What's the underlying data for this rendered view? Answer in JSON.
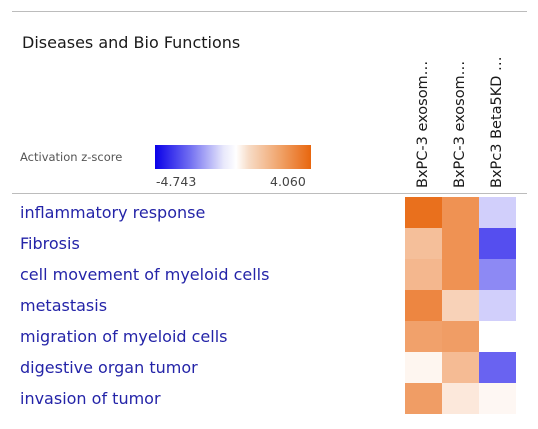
{
  "title": "Diseases and Bio Functions",
  "legend": {
    "label": "Activation z-score",
    "min": "-4.743",
    "max": "4.060"
  },
  "colors": {
    "negative": "#0a00e8",
    "positive": "#e8660e",
    "neutral": "#ffffff",
    "row_label": "#2424a8"
  },
  "chart_data": {
    "type": "heatmap",
    "title": "Diseases and Bio Functions",
    "color_scale_label": "Activation z-score",
    "zlim": [
      -4.743,
      4.06
    ],
    "columns": [
      "BxPC-3 exosom…",
      "BxPC-3 exosom…",
      "BxPc3 Beta5KD …"
    ],
    "rows": [
      "inflammatory response",
      "Fibrosis",
      "cell movement of myeloid cells",
      "metastasis",
      "migration of myeloid cells",
      "digestive organ tumor",
      "invasion of tumor"
    ],
    "values": [
      [
        3.8,
        2.9,
        -0.9
      ],
      [
        1.7,
        2.9,
        -3.3
      ],
      [
        1.9,
        2.9,
        -2.2
      ],
      [
        3.2,
        1.2,
        -0.9
      ],
      [
        2.5,
        2.6,
        null
      ],
      [
        0.25,
        1.8,
        -2.9
      ],
      [
        2.6,
        0.6,
        0.2
      ]
    ]
  }
}
